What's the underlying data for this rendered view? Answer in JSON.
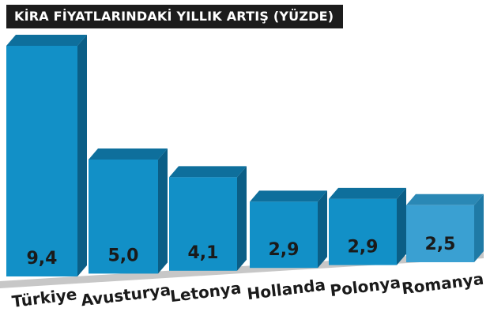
{
  "title": "KİRA FİYATLARINDAKİ YILLIK ARTIŞ (YÜZDE)",
  "colors": {
    "bar_front": "#1290c7",
    "bar_top": "#0e6f9c",
    "bar_side": "#0b5e86",
    "bar_front_light": "#3aa0d2",
    "bar_top_light": "#2a88b5",
    "bar_side_light": "#1f7aa6",
    "floor": "#c7c7c7",
    "text": "#1a1a1a"
  },
  "chart_data": {
    "type": "bar",
    "title": "KİRA FİYATLARINDAKİ YILLIK ARTIŞ (YÜZDE)",
    "categories": [
      "Türkiye",
      "Avusturya",
      "Letonya",
      "Hollanda",
      "Polonya",
      "Romanya"
    ],
    "values": [
      9.4,
      5.0,
      4.1,
      2.9,
      2.9,
      2.5
    ],
    "value_labels": [
      "9,4",
      "5,0",
      "4,1",
      "2,9",
      "2,9",
      "2,5"
    ],
    "xlabel": "",
    "ylabel": "",
    "ylim": [
      0,
      9.4
    ],
    "grid": false,
    "legend": "none"
  }
}
